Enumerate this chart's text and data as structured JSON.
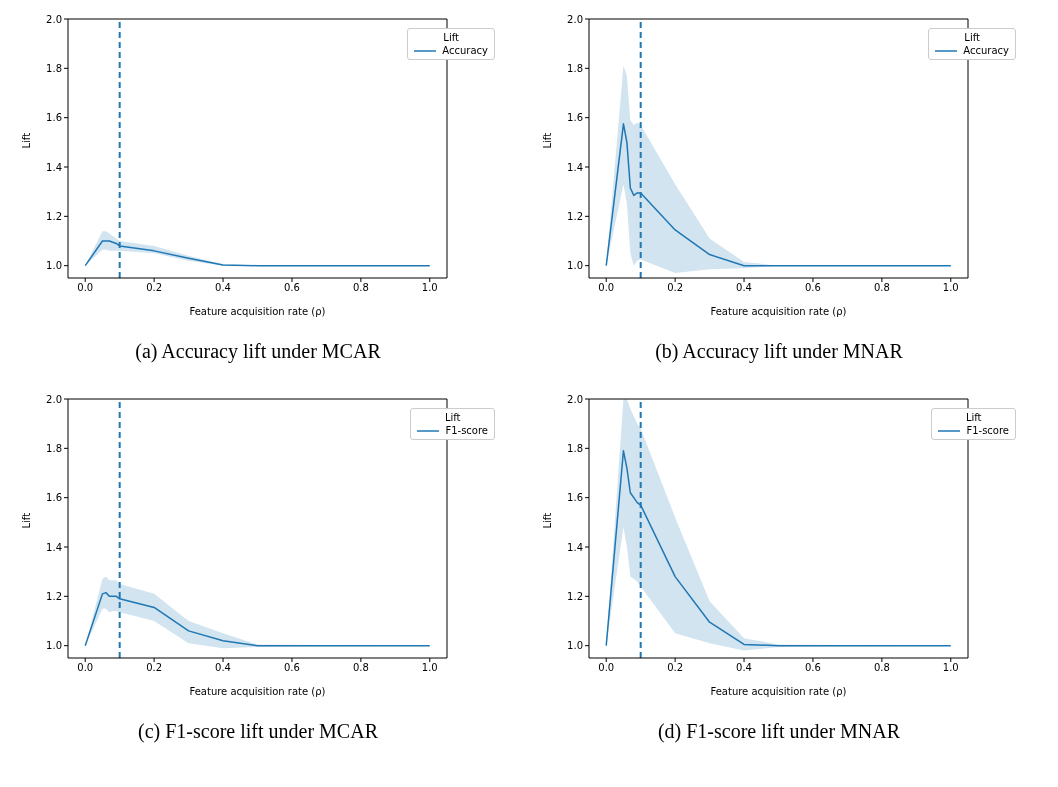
{
  "chart_data": [
    {
      "type": "line",
      "title": "(a) Accuracy lift under MCAR",
      "xlabel": "Feature acquisition rate (ρ)",
      "ylabel": "Lift",
      "legend_title": "Lift",
      "legend": "top right",
      "xlim": [
        -0.05,
        1.05
      ],
      "ylim": [
        0.95,
        2.0
      ],
      "xticks": [
        {
          "value": 0,
          "label": "0.0"
        },
        {
          "value": 0.2,
          "label": "0.2"
        },
        {
          "value": 0.4,
          "label": "0.4"
        },
        {
          "value": 0.6,
          "label": "0.6"
        },
        {
          "value": 0.8,
          "label": "0.8"
        },
        {
          "value": 1,
          "label": "1.0"
        }
      ],
      "yticks": [
        {
          "value": 1,
          "label": "1.0"
        },
        {
          "value": 1.2,
          "label": "1.2"
        },
        {
          "value": 1.4,
          "label": "1.4"
        },
        {
          "value": 1.6,
          "label": "1.6"
        },
        {
          "value": 1.8,
          "label": "1.8"
        },
        {
          "value": 2,
          "label": "2.0"
        }
      ],
      "ref_lines": [
        {
          "axis": "x",
          "value": 0.1,
          "color": "#1f77b4",
          "line_style": "dashed"
        }
      ],
      "series": [
        {
          "name": "Accuracy",
          "color": "#1f77b4",
          "x": [
            0,
            0.05,
            0.06,
            0.07,
            0.08,
            0.09,
            0.1,
            0.2,
            0.3,
            0.4,
            0.5,
            1.0
          ],
          "values": [
            1.0,
            1.1,
            1.1,
            1.1,
            1.095,
            1.09,
            1.08,
            1.06,
            1.03,
            1.003,
            1.0,
            1.0
          ],
          "lower": [
            1.0,
            1.065,
            1.065,
            1.06,
            1.06,
            1.06,
            1.06,
            1.05,
            1.02,
            1.0,
            1.0,
            1.0
          ],
          "upper": [
            1.0,
            1.14,
            1.14,
            1.13,
            1.12,
            1.11,
            1.1,
            1.08,
            1.04,
            1.006,
            1.0,
            1.0
          ]
        }
      ]
    },
    {
      "type": "line",
      "title": "(b) Accuracy lift under MNAR",
      "xlabel": "Feature acquisition rate (ρ)",
      "ylabel": "Lift",
      "legend_title": "Lift",
      "legend": "top right",
      "xlim": [
        -0.05,
        1.05
      ],
      "ylim": [
        0.95,
        2.0
      ],
      "xticks": [
        {
          "value": 0,
          "label": "0.0"
        },
        {
          "value": 0.2,
          "label": "0.2"
        },
        {
          "value": 0.4,
          "label": "0.4"
        },
        {
          "value": 0.6,
          "label": "0.6"
        },
        {
          "value": 0.8,
          "label": "0.8"
        },
        {
          "value": 1,
          "label": "1.0"
        }
      ],
      "yticks": [
        {
          "value": 1,
          "label": "1.0"
        },
        {
          "value": 1.2,
          "label": "1.2"
        },
        {
          "value": 1.4,
          "label": "1.4"
        },
        {
          "value": 1.6,
          "label": "1.6"
        },
        {
          "value": 1.8,
          "label": "1.8"
        },
        {
          "value": 2,
          "label": "2.0"
        }
      ],
      "ref_lines": [
        {
          "axis": "x",
          "value": 0.1,
          "color": "#1f77b4",
          "line_style": "dashed"
        }
      ],
      "series": [
        {
          "name": "Accuracy",
          "color": "#1f77b4",
          "x": [
            0,
            0.05,
            0.06,
            0.07,
            0.08,
            0.09,
            0.1,
            0.2,
            0.3,
            0.4,
            0.5,
            1.0
          ],
          "values": [
            1.0,
            1.575,
            1.5,
            1.315,
            1.285,
            1.295,
            1.295,
            1.145,
            1.045,
            1.0,
            1.0,
            1.0
          ],
          "lower": [
            1.0,
            1.33,
            1.25,
            1.05,
            1.0,
            1.02,
            1.025,
            0.97,
            0.985,
            0.99,
            1.0,
            1.0
          ],
          "upper": [
            1.0,
            1.81,
            1.77,
            1.59,
            1.57,
            1.58,
            1.57,
            1.33,
            1.11,
            1.015,
            1.0,
            1.0
          ]
        }
      ]
    },
    {
      "type": "line",
      "title": "(c) F1-score lift under MCAR",
      "xlabel": "Feature acquisition rate (ρ)",
      "ylabel": "Lift",
      "legend_title": "Lift",
      "legend": "top right",
      "xlim": [
        -0.05,
        1.05
      ],
      "ylim": [
        0.95,
        2.0
      ],
      "xticks": [
        {
          "value": 0,
          "label": "0.0"
        },
        {
          "value": 0.2,
          "label": "0.2"
        },
        {
          "value": 0.4,
          "label": "0.4"
        },
        {
          "value": 0.6,
          "label": "0.6"
        },
        {
          "value": 0.8,
          "label": "0.8"
        },
        {
          "value": 1,
          "label": "1.0"
        }
      ],
      "yticks": [
        {
          "value": 1,
          "label": "1.0"
        },
        {
          "value": 1.2,
          "label": "1.2"
        },
        {
          "value": 1.4,
          "label": "1.4"
        },
        {
          "value": 1.6,
          "label": "1.6"
        },
        {
          "value": 1.8,
          "label": "1.8"
        },
        {
          "value": 2,
          "label": "2.0"
        }
      ],
      "ref_lines": [
        {
          "axis": "x",
          "value": 0.1,
          "color": "#1f77b4",
          "line_style": "dashed"
        }
      ],
      "series": [
        {
          "name": "F1-score",
          "color": "#1f77b4",
          "x": [
            0,
            0.05,
            0.06,
            0.07,
            0.08,
            0.09,
            0.1,
            0.2,
            0.3,
            0.4,
            0.5,
            1.0
          ],
          "values": [
            1.0,
            1.21,
            1.215,
            1.2,
            1.2,
            1.2,
            1.19,
            1.155,
            1.06,
            1.02,
            1.0,
            1.0
          ],
          "lower": [
            1.0,
            1.15,
            1.15,
            1.135,
            1.14,
            1.14,
            1.135,
            1.1,
            1.01,
            0.99,
            0.995,
            1.0
          ],
          "upper": [
            1.0,
            1.27,
            1.28,
            1.265,
            1.265,
            1.265,
            1.25,
            1.21,
            1.1,
            1.05,
            1.005,
            1.0
          ]
        }
      ]
    },
    {
      "type": "line",
      "title": "(d) F1-score lift under MNAR",
      "xlabel": "Feature acquisition rate (ρ)",
      "ylabel": "Lift",
      "legend_title": "Lift",
      "legend": "top right",
      "xlim": [
        -0.05,
        1.05
      ],
      "ylim": [
        0.95,
        2.0
      ],
      "xticks": [
        {
          "value": 0,
          "label": "0.0"
        },
        {
          "value": 0.2,
          "label": "0.2"
        },
        {
          "value": 0.4,
          "label": "0.4"
        },
        {
          "value": 0.6,
          "label": "0.6"
        },
        {
          "value": 0.8,
          "label": "0.8"
        },
        {
          "value": 1,
          "label": "1.0"
        }
      ],
      "yticks": [
        {
          "value": 1,
          "label": "1.0"
        },
        {
          "value": 1.2,
          "label": "1.2"
        },
        {
          "value": 1.4,
          "label": "1.4"
        },
        {
          "value": 1.6,
          "label": "1.6"
        },
        {
          "value": 1.8,
          "label": "1.8"
        },
        {
          "value": 2,
          "label": "2.0"
        }
      ],
      "ref_lines": [
        {
          "axis": "x",
          "value": 0.1,
          "color": "#1f77b4",
          "line_style": "dashed"
        }
      ],
      "series": [
        {
          "name": "F1-score",
          "color": "#1f77b4",
          "x": [
            0,
            0.05,
            0.06,
            0.07,
            0.08,
            0.09,
            0.1,
            0.2,
            0.3,
            0.4,
            0.5,
            1.0
          ],
          "values": [
            1.0,
            1.79,
            1.72,
            1.62,
            1.6,
            1.58,
            1.57,
            1.28,
            1.095,
            1.005,
            1.0,
            1.0
          ],
          "lower": [
            1.0,
            1.48,
            1.4,
            1.28,
            1.27,
            1.26,
            1.24,
            1.05,
            1.01,
            0.98,
            0.995,
            1.0
          ],
          "upper": [
            1.0,
            2.0,
            2.0,
            1.96,
            1.93,
            1.9,
            1.88,
            1.52,
            1.18,
            1.03,
            1.005,
            1.0
          ]
        }
      ]
    }
  ]
}
